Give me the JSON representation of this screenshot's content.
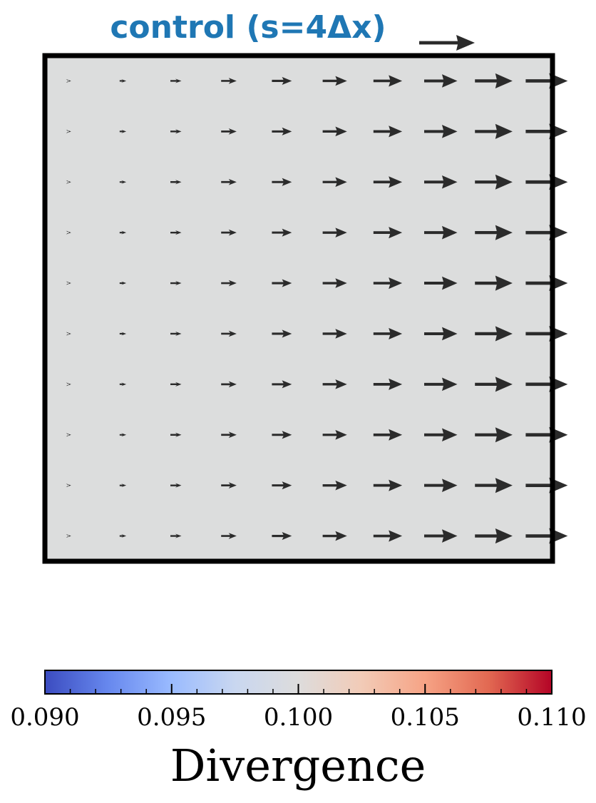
{
  "chart_data": {
    "type": "quiver",
    "title": "control (s=4Δx)",
    "title_color": "#1f77b4",
    "arrow_color": "#2b2b2b",
    "field_color": "#dcdddd",
    "grid": {
      "x": [
        0.5,
        1.5,
        2.5,
        3.5,
        4.5,
        5.5,
        6.5,
        7.5,
        8.5,
        9.5
      ],
      "y": [
        0.5,
        1.5,
        2.5,
        3.5,
        4.5,
        5.5,
        6.5,
        7.5,
        8.5,
        9.5
      ]
    },
    "xlim": [
      0,
      10
    ],
    "ylim": [
      0,
      10
    ],
    "u_by_column": [
      0.05,
      0.15,
      0.25,
      0.35,
      0.45,
      0.55,
      0.65,
      0.75,
      0.85,
      0.95
    ],
    "v": 0,
    "reference_arrow_u": 1.0,
    "colorbar": {
      "label": "Divergence",
      "min": 0.09,
      "max": 0.11,
      "ticks": [
        0.09,
        0.095,
        0.1,
        0.105,
        0.11
      ],
      "tick_labels": [
        "0.090",
        "0.095",
        "0.100",
        "0.105",
        "0.110"
      ],
      "minor_ticks": [
        0.091,
        0.092,
        0.093,
        0.094,
        0.096,
        0.097,
        0.098,
        0.099,
        0.101,
        0.102,
        0.103,
        0.104,
        0.106,
        0.107,
        0.108,
        0.109
      ],
      "colormap": "coolwarm",
      "stops": [
        "#3b4cc0",
        "#6788ee",
        "#9abbff",
        "#c9d7f0",
        "#dddcdc",
        "#f2cbb7",
        "#f6a385",
        "#e26952",
        "#b40426"
      ]
    }
  }
}
